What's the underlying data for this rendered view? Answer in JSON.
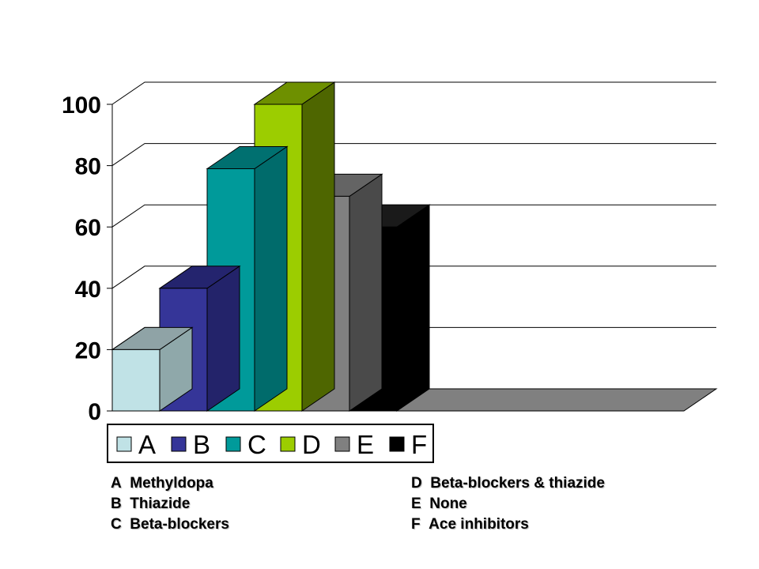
{
  "chart_data": {
    "type": "bar",
    "categories": [
      "A",
      "B",
      "C",
      "D",
      "E",
      "F"
    ],
    "values": [
      20,
      40,
      79,
      100,
      70,
      60
    ],
    "colors": [
      "#c0e2e6",
      "#353598",
      "#009a9a",
      "#9ccd00",
      "#808080",
      "#000000"
    ],
    "side_colors": [
      "#8fa8aa",
      "#23236a",
      "#006b6b",
      "#4e6600",
      "#4a4a4a",
      "#000000"
    ],
    "top_colors": [
      "#8fa3a6",
      "#24246e",
      "#007070",
      "#6e9000",
      "#646464",
      "#1a1a1a"
    ],
    "ylim": [
      0,
      100
    ],
    "yticks": [
      0,
      20,
      40,
      60,
      80,
      100
    ],
    "grid": true,
    "legend_position": "bottom",
    "title": "",
    "xlabel": "",
    "ylabel": ""
  },
  "legend_notes": {
    "left": [
      {
        "letter": "A",
        "label": "Methyldopa"
      },
      {
        "letter": "B",
        "label": "Thiazide"
      },
      {
        "letter": "C",
        "label": "Beta-blockers"
      }
    ],
    "right": [
      {
        "letter": "D",
        "label": "Beta-blockers & thiazide"
      },
      {
        "letter": "E",
        "label": "None"
      },
      {
        "letter": "F",
        "label": "Ace inhibitors"
      }
    ]
  }
}
